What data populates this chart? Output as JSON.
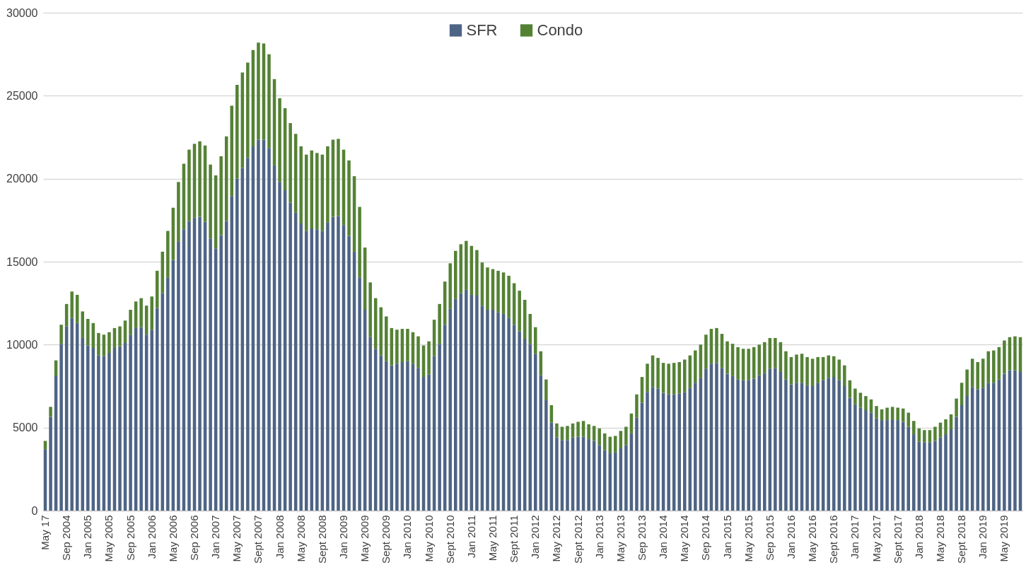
{
  "chart_data": {
    "type": "bar",
    "stacked": true,
    "grid": "y",
    "legend": "top",
    "ylim": [
      0,
      30000
    ],
    "yticks": [
      0,
      5000,
      10000,
      15000,
      20000,
      25000,
      30000
    ],
    "categories": [
      "May 17",
      null,
      null,
      null,
      "Sep 2004",
      null,
      null,
      null,
      "Jan 2005",
      null,
      null,
      null,
      "May 2005",
      null,
      null,
      null,
      "Sep 2005",
      null,
      null,
      null,
      "Jan 2006",
      null,
      null,
      null,
      "May 2006",
      null,
      null,
      null,
      "Sep 2006",
      null,
      null,
      null,
      "Jan 2007",
      null,
      null,
      null,
      "May 2007",
      null,
      null,
      null,
      "Sept 2007",
      null,
      null,
      null,
      "Jan 2008",
      null,
      null,
      null,
      "May 2008",
      null,
      null,
      null,
      "Sept 2008",
      null,
      null,
      null,
      "Jan 2009",
      null,
      null,
      null,
      "May 2009",
      null,
      null,
      null,
      "Sept 2009",
      null,
      null,
      null,
      "Jan 2010",
      null,
      null,
      null,
      "May 2010",
      null,
      null,
      null,
      "Sept 2010",
      null,
      null,
      null,
      "Jan 2011",
      null,
      null,
      null,
      "May 2011",
      null,
      null,
      null,
      "Sept 2011",
      null,
      null,
      null,
      "Jan 2012",
      null,
      null,
      null,
      "May 2012",
      null,
      null,
      null,
      "Sept 2012",
      null,
      null,
      null,
      "Jan 2013",
      null,
      null,
      null,
      "May 2013",
      null,
      null,
      null,
      "Sep 2013",
      null,
      null,
      null,
      "Jan 2014",
      null,
      null,
      null,
      "May 2014",
      null,
      null,
      null,
      "Sep 2014",
      null,
      null,
      null,
      "Jan 2015",
      null,
      null,
      null,
      "May 2015",
      null,
      null,
      null,
      "Sep 2015",
      null,
      null,
      null,
      "Jan 2016",
      null,
      null,
      null,
      "May 2016",
      null,
      null,
      null,
      "Sept 2016",
      null,
      null,
      null,
      "Jan 2017",
      null,
      null,
      null,
      "May 2017",
      null,
      null,
      null,
      "Sept 2017",
      null,
      null,
      null,
      "Jan 2018",
      null,
      null,
      null,
      "May 2018",
      null,
      null,
      null,
      "Sept 2018",
      null,
      null,
      null,
      "Jan 2019",
      null,
      null,
      null,
      "May 2019",
      null,
      null,
      null
    ],
    "series": [
      {
        "name": "SFR",
        "color": "#4e6485",
        "values": [
          3700,
          5650,
          8100,
          10050,
          11100,
          11600,
          11300,
          10400,
          9950,
          9800,
          9350,
          9300,
          9500,
          9800,
          9900,
          10100,
          10600,
          11000,
          11050,
          10600,
          10900,
          12200,
          13100,
          14050,
          15100,
          16200,
          16950,
          17450,
          17650,
          17700,
          17400,
          16400,
          15800,
          16600,
          17450,
          18950,
          20000,
          20650,
          21250,
          21950,
          22350,
          22350,
          21850,
          20800,
          19800,
          19300,
          18550,
          17950,
          17300,
          16850,
          17000,
          16950,
          16850,
          17350,
          17700,
          17750,
          17200,
          16550,
          15600,
          14050,
          12100,
          10450,
          9750,
          9350,
          9000,
          8750,
          8850,
          8950,
          9000,
          8850,
          8600,
          8050,
          8200,
          9300,
          10050,
          11200,
          12150,
          12750,
          13100,
          13300,
          13000,
          12950,
          12350,
          12100,
          12100,
          11950,
          11850,
          11600,
          11200,
          10800,
          10350,
          10050,
          9450,
          8150,
          6650,
          5300,
          4400,
          4250,
          4250,
          4400,
          4450,
          4450,
          4300,
          4200,
          3950,
          3650,
          3450,
          3500,
          3750,
          3950,
          4650,
          5600,
          6500,
          7150,
          7450,
          7350,
          7100,
          7000,
          7000,
          7050,
          7150,
          7400,
          7700,
          8000,
          8550,
          8850,
          8900,
          8600,
          8250,
          8100,
          7900,
          7850,
          7850,
          7950,
          8150,
          8300,
          8550,
          8600,
          8350,
          7900,
          7600,
          7700,
          7700,
          7550,
          7500,
          7700,
          7850,
          8000,
          8050,
          7850,
          7500,
          6800,
          6400,
          6200,
          6050,
          5900,
          5550,
          5450,
          5450,
          5500,
          5450,
          5350,
          5050,
          4600,
          4150,
          4100,
          4100,
          4200,
          4400,
          4600,
          4900,
          5650,
          6350,
          6900,
          7450,
          7300,
          7400,
          7700,
          7700,
          7900,
          8250,
          8450,
          8450,
          8350
        ]
      },
      {
        "name": "Condo",
        "color": "#548235",
        "values": [
          500,
          600,
          950,
          1150,
          1350,
          1600,
          1700,
          1600,
          1600,
          1500,
          1350,
          1300,
          1250,
          1200,
          1200,
          1350,
          1500,
          1600,
          1750,
          1750,
          2000,
          2250,
          2500,
          2800,
          3150,
          3600,
          3950,
          4300,
          4450,
          4550,
          4600,
          4450,
          4400,
          4750,
          5100,
          5450,
          5650,
          5750,
          5750,
          5800,
          5850,
          5800,
          5650,
          5200,
          5050,
          4950,
          4800,
          4750,
          4650,
          4600,
          4700,
          4600,
          4600,
          4600,
          4650,
          4650,
          4550,
          4550,
          4550,
          4250,
          3750,
          3300,
          3050,
          2900,
          2700,
          2250,
          2050,
          2000,
          1950,
          1900,
          1900,
          1900,
          2000,
          2200,
          2400,
          2600,
          2750,
          2900,
          2950,
          2950,
          2950,
          2750,
          2600,
          2550,
          2450,
          2500,
          2500,
          2550,
          2500,
          2450,
          2350,
          1800,
          1600,
          1450,
          1250,
          1050,
          850,
          800,
          850,
          850,
          900,
          950,
          900,
          900,
          1000,
          1000,
          1000,
          1000,
          1050,
          1100,
          1200,
          1400,
          1550,
          1700,
          1900,
          1850,
          1800,
          1850,
          1900,
          1900,
          1950,
          1950,
          1950,
          2000,
          2050,
          2100,
          2100,
          2050,
          1950,
          1950,
          1950,
          1900,
          1900,
          1900,
          1850,
          1850,
          1850,
          1800,
          1800,
          1700,
          1650,
          1700,
          1750,
          1700,
          1650,
          1550,
          1400,
          1350,
          1250,
          1250,
          1250,
          1050,
          950,
          900,
          850,
          800,
          750,
          650,
          750,
          750,
          750,
          800,
          850,
          800,
          800,
          750,
          750,
          850,
          900,
          900,
          900,
          1100,
          1350,
          1600,
          1700,
          1650,
          1750,
          1900,
          1950,
          1950,
          2000,
          2000,
          2050,
          2100
        ]
      }
    ]
  }
}
